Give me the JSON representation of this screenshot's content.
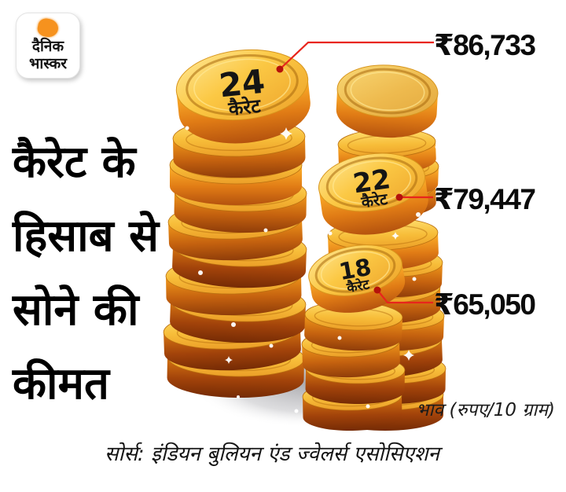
{
  "brand": {
    "logo_line1": "दैनिक",
    "logo_line2": "भास्कर"
  },
  "headline": {
    "lines": [
      "कैरेट के",
      "हिसाब से",
      "सोने की",
      "कीमत"
    ]
  },
  "coins": [
    {
      "karat": "24",
      "karat_label": "कैरेट",
      "price": "₹86,733"
    },
    {
      "karat": "22",
      "karat_label": "कैरेट",
      "price": "₹79,447"
    },
    {
      "karat": "18",
      "karat_label": "कैरेट",
      "price": "₹65,050"
    }
  ],
  "unit_note": "भाव (रुपए/10 ग्राम)",
  "source": "सोर्स: इंडियन बुलियन एंड ज्वेलर्स एसोसिएशन",
  "colors": {
    "accent_red": "#e8251c",
    "leader_dot": "#b5120b",
    "gold_face": "#fbc844",
    "gold_side_dark": "#a2430a",
    "text": "#0b0b0b"
  },
  "chart_data": {
    "type": "bar",
    "title": "कैरेट के हिसाब से सोने की कीमत",
    "categories": [
      "24 कैरेट",
      "22 कैरेट",
      "18 कैरेट"
    ],
    "values": [
      86733,
      79447,
      65050
    ],
    "value_labels": [
      "₹86,733",
      "₹79,447",
      "₹65,050"
    ],
    "ylabel": "भाव (रुपए/10 ग्राम)",
    "legend": "none",
    "annotations": [
      "सोर्स: इंडियन बुलियन एंड ज्वेलर्स एसोसिएशन"
    ]
  }
}
